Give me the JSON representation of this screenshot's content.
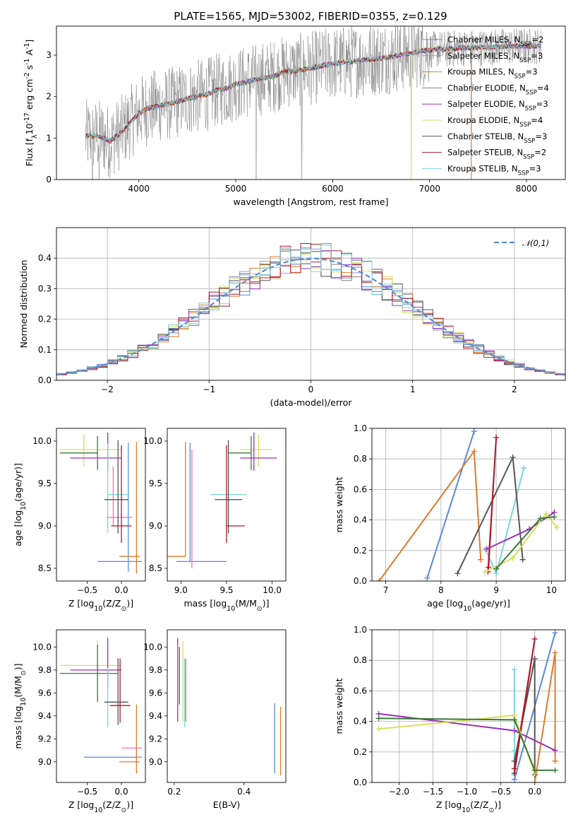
{
  "figure": {
    "title": "PLATE=1565, MJD=53002, FIBERID=0355, z=0.129"
  },
  "chart_data": [
    {
      "id": "spectrum",
      "type": "line",
      "xlabel": "wavelength [Angstrom, rest frame]",
      "ylabel": "Flux [f$_\\lambda$10$^{-17}$ erg cm$^{-2}$ s$^{-1}$ A$^{-1}$]",
      "xlim": [
        3150,
        8400
      ],
      "ylim": [
        0,
        3.7
      ],
      "xticks": [
        4000,
        5000,
        6000,
        7000,
        8000
      ],
      "yticks": [
        0,
        1,
        2,
        3
      ],
      "legend_position": "upper-right",
      "continuum": {
        "x": [
          3450,
          3500,
          3600,
          3700,
          3800,
          3900,
          4000,
          4100,
          4200,
          4300,
          4400,
          4500,
          4600,
          4700,
          4800,
          4900,
          5000,
          5100,
          5200,
          5300,
          5400,
          5500,
          5600,
          5700,
          5800,
          5900,
          6000,
          6100,
          6200,
          6300,
          6400,
          6500,
          6600,
          6700,
          6800,
          6900,
          7000,
          7100,
          7200,
          7300,
          7400,
          7500,
          7600,
          7700,
          7800,
          7900,
          8000,
          8100,
          8150
        ],
        "y": [
          1.05,
          1.05,
          1.05,
          0.92,
          1.1,
          1.35,
          1.6,
          1.72,
          1.78,
          1.82,
          1.88,
          1.95,
          2.0,
          2.05,
          2.15,
          2.2,
          2.3,
          2.35,
          2.4,
          2.45,
          2.5,
          2.6,
          2.62,
          2.65,
          2.7,
          2.75,
          2.8,
          2.82,
          2.85,
          2.88,
          2.9,
          2.92,
          2.96,
          3.0,
          3.05,
          3.1,
          3.12,
          3.15,
          3.15,
          3.17,
          3.18,
          3.18,
          3.19,
          3.2,
          3.21,
          3.22,
          3.22,
          3.22,
          3.22
        ]
      },
      "data_noise_amplitude": 0.9,
      "data_dropouts_x": [
        3520,
        3590,
        5210,
        5680,
        6810,
        7430
      ],
      "series": [
        {
          "name": "Chabrier MILES, N$_{SSP}$=2",
          "color": "#5b8bd9"
        },
        {
          "name": "Salpeter MILES, N$_{SSP}$=3",
          "color": "#8e9ed0"
        },
        {
          "name": "Kroupa MILES, N$_{SSP}$=3",
          "color": "#e07b2c"
        },
        {
          "name": "Chabrier ELODIE, N$_{SSP}$=4",
          "color": "#808080"
        },
        {
          "name": "Salpeter ELODIE, N$_{SSP}$=3",
          "color": "#9b30b8"
        },
        {
          "name": "Kroupa ELODIE, N$_{SSP}$=4",
          "color": "#d8e05a"
        },
        {
          "name": "Chabrier STELIB, N$_{SSP}$=3",
          "color": "#555555"
        },
        {
          "name": "Salpeter STELIB, N$_{SSP}$=2",
          "color": "#b0182a"
        },
        {
          "name": "Kroupa STELIB, N$_{SSP}$=3",
          "color": "#7ad6dd"
        }
      ]
    },
    {
      "id": "residuals",
      "type": "histogram",
      "xlabel": "(data-model)/error",
      "ylabel": "Normed distribution",
      "xlim": [
        -2.5,
        2.5
      ],
      "ylim": [
        0,
        0.5
      ],
      "xticks": [
        -2,
        -1,
        0,
        1,
        2
      ],
      "yticks": [
        0.0,
        0.1,
        0.2,
        0.3,
        0.4
      ],
      "grid": true,
      "bin_width": 0.1,
      "reference": {
        "name": "$\\mathcal{N}(0,1)$",
        "color": "#5b8bd9",
        "style": "dashed"
      },
      "legend_position": "upper-right",
      "series_colors": [
        "#5b8bd9",
        "#8e9ed0",
        "#e07b2c",
        "#808080",
        "#9b30b8",
        "#d8e05a",
        "#555555",
        "#b0182a",
        "#7ad6dd"
      ]
    },
    {
      "id": "age_vs_Z",
      "type": "errorbar",
      "xlabel": "Z [log$_{10}$(Z/Z$_\\odot$)]",
      "ylabel": "age  [log$_{10}$(age/yr)]",
      "xlim": [
        -0.95,
        0.35
      ],
      "ylim": [
        8.35,
        10.15
      ],
      "xticks": [
        -0.5,
        0.0
      ],
      "yticks": [
        8.5,
        9.0,
        9.5,
        10.0
      ],
      "points": [
        {
          "x": 0.1,
          "y": 8.58,
          "xerr": [
            0.45,
            0.2
          ],
          "yerr": [
            0.12,
            1.4
          ],
          "color": "#5b8bd9"
        },
        {
          "x": 0.22,
          "y": 8.64,
          "xerr": [
            0.25,
            0.05
          ],
          "yerr": [
            0.2,
            1.35
          ],
          "color": "#e07b2c"
        },
        {
          "x": -0.12,
          "y": 9.1,
          "xerr": [
            0.1,
            0.28
          ],
          "yerr": [
            0.1,
            0.6
          ],
          "color": "#ff69b4"
        },
        {
          "x": -0.55,
          "y": 9.9,
          "xerr": [
            0.35,
            0.55
          ],
          "yerr": [
            0.2,
            0.18
          ],
          "color": "#d8e05a"
        },
        {
          "x": -0.35,
          "y": 9.86,
          "xerr": [
            0.55,
            0.0
          ],
          "yerr": [
            0.2,
            0.2
          ],
          "color": "#3a7a3a"
        },
        {
          "x": -0.2,
          "y": 9.8,
          "xerr": [
            0.55,
            0.2
          ],
          "yerr": [
            0.15,
            0.3
          ],
          "color": "#9b30b8"
        },
        {
          "x": -0.2,
          "y": 9.37,
          "xerr": [
            0.0,
            0.3
          ],
          "yerr": [
            0.45,
            0.6
          ],
          "color": "#7ad6dd"
        },
        {
          "x": -0.05,
          "y": 9.31,
          "xerr": [
            0.2,
            0.15
          ],
          "yerr": [
            0.4,
            0.7
          ],
          "color": "#555555"
        },
        {
          "x": 0.0,
          "y": 9.0,
          "xerr": [
            0.15,
            0.15
          ],
          "yerr": [
            0.2,
            0.95
          ],
          "color": "#b0182a"
        }
      ]
    },
    {
      "id": "age_vs_mass",
      "type": "errorbar",
      "xlabel": "mass [log$_{10}$(M/M$_\\odot$)]",
      "ylabel": "",
      "xlim": [
        8.85,
        10.15
      ],
      "ylim": [
        8.35,
        10.15
      ],
      "xticks": [
        9.0,
        9.5,
        10.0
      ],
      "yticks": [
        8.5,
        9.0,
        9.5,
        10.0
      ],
      "points": [
        {
          "x": 9.1,
          "y": 8.58,
          "xerr": [
            0.15,
            0.4
          ],
          "yerr": [
            0.0,
            1.4
          ],
          "color": "#5b8bd9"
        },
        {
          "x": 9.05,
          "y": 8.64,
          "xerr": [
            0.2,
            0.0
          ],
          "yerr": [
            0.0,
            1.35
          ],
          "color": "#e07b2c"
        },
        {
          "x": 9.12,
          "y": 8.9,
          "xerr": [
            0.0,
            0.0
          ],
          "yerr": [
            0.4,
            1.0
          ],
          "color": "#ff69b4"
        },
        {
          "x": 9.85,
          "y": 9.9,
          "xerr": [
            0.2,
            0.15
          ],
          "yerr": [
            0.2,
            0.18
          ],
          "color": "#d8e05a"
        },
        {
          "x": 9.77,
          "y": 9.86,
          "xerr": [
            0.25,
            0.0
          ],
          "yerr": [
            0.2,
            0.2
          ],
          "color": "#3a7a3a"
        },
        {
          "x": 9.8,
          "y": 9.8,
          "xerr": [
            0.15,
            0.25
          ],
          "yerr": [
            0.15,
            0.3
          ],
          "color": "#9b30b8"
        },
        {
          "x": 9.52,
          "y": 9.37,
          "xerr": [
            0.2,
            0.2
          ],
          "yerr": [
            0.45,
            0.6
          ],
          "color": "#7ad6dd"
        },
        {
          "x": 9.52,
          "y": 9.31,
          "xerr": [
            0.15,
            0.15
          ],
          "yerr": [
            0.4,
            0.7
          ],
          "color": "#555555"
        },
        {
          "x": 9.5,
          "y": 9.0,
          "xerr": [
            0.0,
            0.2
          ],
          "yerr": [
            0.2,
            0.95
          ],
          "color": "#b0182a"
        }
      ]
    },
    {
      "id": "weight_vs_age",
      "type": "line",
      "xlabel": "age  [log$_{10}$(age/yr)]",
      "ylabel": "mass weight",
      "xlim": [
        6.75,
        10.25
      ],
      "ylim": [
        0,
        1
      ],
      "xticks": [
        7,
        8,
        9,
        10
      ],
      "yticks": [
        0.0,
        0.2,
        0.4,
        0.6,
        0.8,
        1.0
      ],
      "grid": true,
      "series": [
        {
          "color": "#5b8bd9",
          "x": [
            7.75,
            8.6
          ],
          "y": [
            0.02,
            0.98
          ]
        },
        {
          "color": "#e07b2c",
          "x": [
            6.88,
            8.6,
            8.72
          ],
          "y": [
            0.0,
            0.85,
            0.14
          ]
        },
        {
          "color": "#7ad6dd",
          "x": [
            8.8,
            9.0,
            9.5
          ],
          "y": [
            0.21,
            0.05,
            0.74
          ]
        },
        {
          "color": "#555555",
          "x": [
            8.3,
            9.3,
            9.48
          ],
          "y": [
            0.05,
            0.81,
            0.14
          ]
        },
        {
          "color": "#b0182a",
          "x": [
            8.85,
            9.0,
            8.86
          ],
          "y": [
            0.06,
            0.94,
            0.09
          ]
        },
        {
          "color": "#9b30b8",
          "x": [
            8.83,
            9.6,
            10.05
          ],
          "y": [
            0.21,
            0.34,
            0.45
          ]
        },
        {
          "color": "#d8e05a",
          "x": [
            8.8,
            9.3,
            9.9,
            10.1
          ],
          "y": [
            0.06,
            0.15,
            0.44,
            0.35
          ]
        },
        {
          "color": "#3a7a3a",
          "x": [
            9.0,
            9.8,
            10.05
          ],
          "y": [
            0.08,
            0.41,
            0.42
          ]
        }
      ]
    },
    {
      "id": "mass_vs_Z",
      "type": "errorbar",
      "xlabel": "Z [log$_{10}$(Z/Z$_\\odot$)]",
      "ylabel": "mass [log$_{10}$(M/M$_\\odot$)]",
      "xlim": [
        -0.95,
        0.35
      ],
      "ylim": [
        8.82,
        10.15
      ],
      "xticks": [
        -0.5,
        0.0
      ],
      "yticks": [
        9.0,
        9.2,
        9.4,
        9.6,
        9.8,
        10.0
      ],
      "points": [
        {
          "x": 0.0,
          "y": 9.04,
          "xerr": [
            0.55,
            0.3
          ],
          "yerr": [
            0.0,
            0.0
          ],
          "color": "#5b8bd9"
        },
        {
          "x": 0.22,
          "y": 9.0,
          "xerr": [
            0.25,
            0.05
          ],
          "yerr": [
            0.1,
            0.5
          ],
          "color": "#e07b2c"
        },
        {
          "x": 0.1,
          "y": 9.12,
          "xerr": [
            0.1,
            0.2
          ],
          "yerr": [
            0.0,
            0.0
          ],
          "color": "#ff69b4"
        },
        {
          "x": -0.35,
          "y": 9.84,
          "xerr": [
            0.55,
            0.35
          ],
          "yerr": [
            0.3,
            0.22
          ],
          "color": "#d8e05a"
        },
        {
          "x": -0.35,
          "y": 9.77,
          "xerr": [
            0.55,
            0.3
          ],
          "yerr": [
            0.25,
            0.25
          ],
          "color": "#3a7a3a"
        },
        {
          "x": -0.2,
          "y": 9.8,
          "xerr": [
            0.55,
            0.2
          ],
          "yerr": [
            0.15,
            0.28
          ],
          "color": "#9b30b8"
        },
        {
          "x": -0.2,
          "y": 9.52,
          "xerr": [
            0.0,
            0.25
          ],
          "yerr": [
            0.22,
            0.3
          ],
          "color": "#7ad6dd"
        },
        {
          "x": -0.05,
          "y": 9.52,
          "xerr": [
            0.2,
            0.15
          ],
          "yerr": [
            0.2,
            0.38
          ],
          "color": "#555555"
        },
        {
          "x": -0.02,
          "y": 9.49,
          "xerr": [
            0.15,
            0.15
          ],
          "yerr": [
            0.15,
            0.41
          ],
          "color": "#b0182a"
        }
      ]
    },
    {
      "id": "mass_vs_ebv",
      "type": "errorbar",
      "xlabel": "E(B-V)",
      "ylabel": "",
      "xlim": [
        0.18,
        0.52
      ],
      "ylim": [
        8.82,
        10.15
      ],
      "xticks": [
        0.2,
        0.4
      ],
      "yticks": [
        9.0,
        9.2,
        9.4,
        9.6,
        9.8,
        10.0
      ],
      "points": [
        {
          "x": 0.488,
          "y": 9.1,
          "xerr": [
            0,
            0
          ],
          "yerr": [
            0.2,
            0.41
          ],
          "color": "#5b8bd9"
        },
        {
          "x": 0.505,
          "y": 9.1,
          "xerr": [
            0,
            0
          ],
          "yerr": [
            0.22,
            0.38
          ],
          "color": "#e07b2c"
        },
        {
          "x": 0.21,
          "y": 9.7,
          "xerr": [
            0,
            0
          ],
          "yerr": [
            0.35,
            0.38
          ],
          "color": "#9b30b8"
        },
        {
          "x": 0.215,
          "y": 9.7,
          "xerr": [
            0,
            0
          ],
          "yerr": [
            0.2,
            0.3
          ],
          "color": "#3a7a3a"
        },
        {
          "x": 0.225,
          "y": 9.7,
          "xerr": [
            0,
            0
          ],
          "yerr": [
            0.35,
            0.35
          ],
          "color": "#d8e05a"
        },
        {
          "x": 0.23,
          "y": 9.55,
          "xerr": [
            0,
            0
          ],
          "yerr": [
            0.25,
            0.35
          ],
          "color": "#7ad6dd"
        },
        {
          "x": 0.233,
          "y": 9.55,
          "xerr": [
            0,
            0
          ],
          "yerr": [
            0.2,
            0.35
          ],
          "color": "#e07b2c"
        }
      ]
    },
    {
      "id": "weight_vs_Z",
      "type": "line",
      "xlabel": "Z [log$_{10}$(Z/Z$_\\odot$)]",
      "ylabel": "mass weight",
      "xlim": [
        -2.4,
        0.45
      ],
      "ylim": [
        0,
        1
      ],
      "xticks": [
        -2.0,
        -1.5,
        -1.0,
        -0.5,
        0.0
      ],
      "yticks": [
        0.0,
        0.2,
        0.4,
        0.6,
        0.8,
        1.0
      ],
      "grid": true,
      "series": [
        {
          "color": "#5b8bd9",
          "x": [
            -0.3,
            0.3
          ],
          "y": [
            0.02,
            0.98
          ]
        },
        {
          "color": "#e07b2c",
          "x": [
            0.0,
            0.3,
            0.3
          ],
          "y": [
            0.0,
            0.85,
            0.14
          ]
        },
        {
          "color": "#7ad6dd",
          "x": [
            -0.3,
            -0.3,
            -0.3
          ],
          "y": [
            0.21,
            0.05,
            0.74
          ]
        },
        {
          "color": "#555555",
          "x": [
            -0.3,
            0.0,
            0.0
          ],
          "y": [
            0.14,
            0.81,
            0.05
          ]
        },
        {
          "color": "#b0182a",
          "x": [
            -0.3,
            0.0,
            -0.3
          ],
          "y": [
            0.06,
            0.94,
            0.09
          ]
        },
        {
          "color": "#9b30b8",
          "x": [
            -2.3,
            -0.3,
            0.3
          ],
          "y": [
            0.45,
            0.34,
            0.21
          ]
        },
        {
          "color": "#d8e05a",
          "x": [
            -2.3,
            -0.3,
            0.0
          ],
          "y": [
            0.35,
            0.44,
            0.06
          ]
        },
        {
          "color": "#3a7a3a",
          "x": [
            -2.3,
            -0.3,
            0.0,
            0.3
          ],
          "y": [
            0.42,
            0.41,
            0.08,
            0.08
          ]
        }
      ]
    }
  ]
}
